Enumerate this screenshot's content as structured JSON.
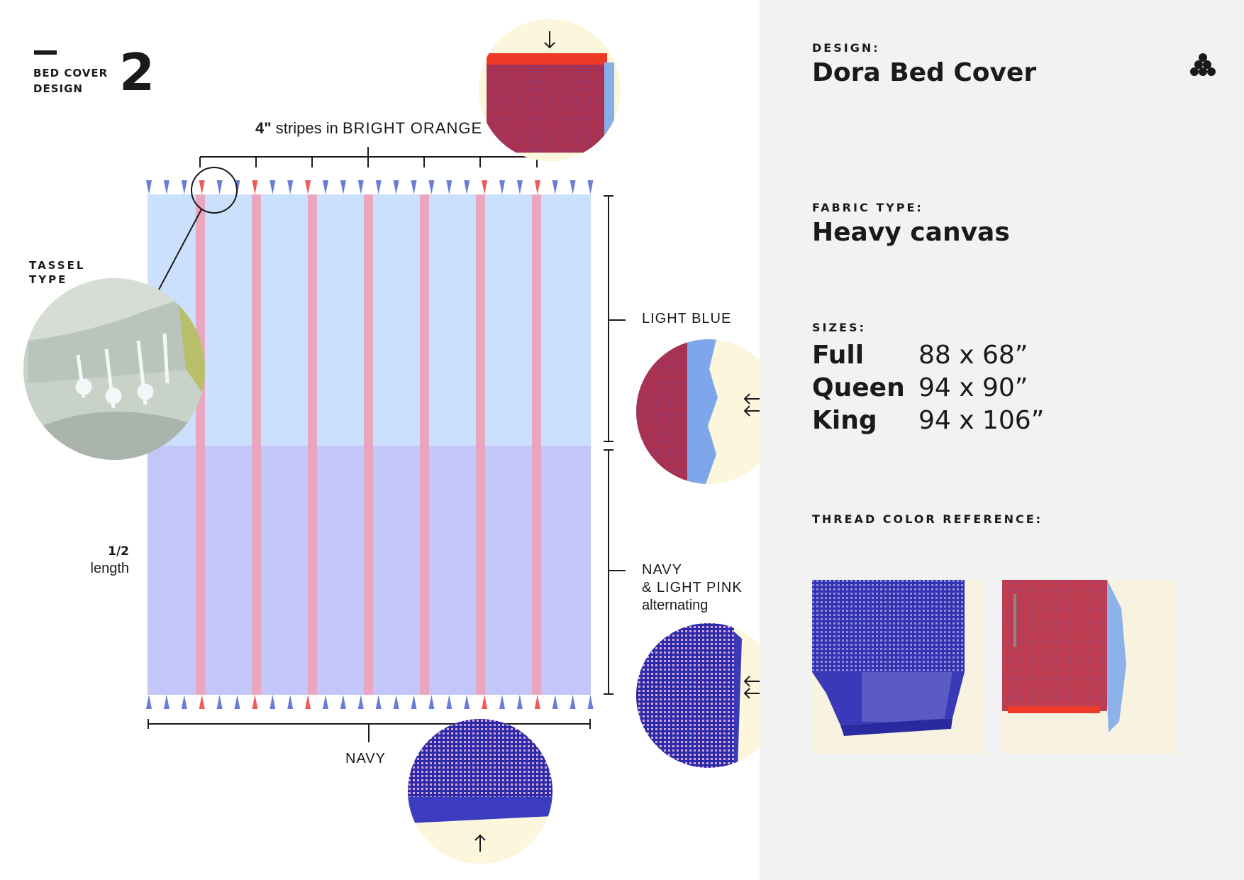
{
  "header": {
    "section_label_line1": "BED COVER",
    "section_label_line2": "DESIGN",
    "section_number": "2"
  },
  "diagram": {
    "stripes_label_prefix": "4\"",
    "stripes_label_middle": " stripes in ",
    "stripes_label_color": "BRIGHT ORANGE",
    "tassel_label_line1": "TASSEL",
    "tassel_label_line2": "TYPE",
    "half_fraction": "1/2",
    "half_word": "length",
    "light_blue_label": "LIGHT BLUE",
    "navy_pink_line1": "NAVY",
    "navy_pink_line2": "& LIGHT PINK",
    "navy_pink_line3": "alternating",
    "bottom_label": "NAVY",
    "colors": {
      "light_blue": "#cbe0fc",
      "lavender": "#c3c6f8",
      "stripe": "#e8a6bf",
      "tassel_blue": "#6a7bd8",
      "tassel_red": "#ee5a5a"
    }
  },
  "spec": {
    "design_label": "DESIGN:",
    "design_name": "Dora Bed Cover",
    "fabric_label": "FABRIC TYPE:",
    "fabric_value": "Heavy canvas",
    "sizes_label": "SIZES:",
    "sizes": [
      {
        "name": "Full",
        "dims": "88 x 68”"
      },
      {
        "name": "Queen",
        "dims": "94 x 90”"
      },
      {
        "name": "King",
        "dims": "94 x 106”"
      }
    ],
    "thread_label": "THREAD COLOR REFERENCE:",
    "logo_icon": "dots-cluster-icon"
  }
}
